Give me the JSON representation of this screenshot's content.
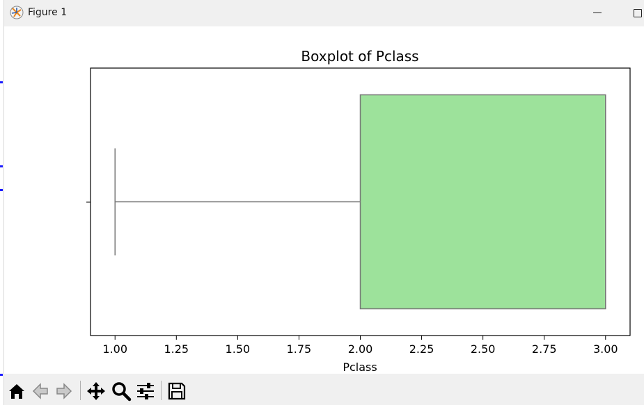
{
  "window": {
    "title": "Figure 1"
  },
  "toolbar": {
    "buttons": [
      {
        "name": "home-icon"
      },
      {
        "name": "back-arrow-icon"
      },
      {
        "name": "forward-arrow-icon"
      },
      {
        "name": "pan-move-icon"
      },
      {
        "name": "zoom-magnifier-icon"
      },
      {
        "name": "configure-subplots-icon"
      },
      {
        "name": "save-floppy-icon"
      }
    ]
  },
  "chart_data": {
    "type": "box",
    "title": "Boxplot of Pclass",
    "xlabel": "Pclass",
    "ylabel": "",
    "xlim": [
      0.9,
      3.1
    ],
    "xticks": [
      1.0,
      1.25,
      1.5,
      1.75,
      2.0,
      2.25,
      2.5,
      2.75,
      3.0
    ],
    "xtick_labels": [
      "1.00",
      "1.25",
      "1.50",
      "1.75",
      "2.00",
      "2.25",
      "2.50",
      "2.75",
      "3.00"
    ],
    "orientation": "horizontal",
    "boxes": [
      {
        "whisker_low": 1.0,
        "q1": 2.0,
        "median": 3.0,
        "q3": 3.0,
        "whisker_high": 3.0
      }
    ],
    "box_color": "#9de29b",
    "line_color": "#777777",
    "grid": false,
    "legend": "none"
  }
}
